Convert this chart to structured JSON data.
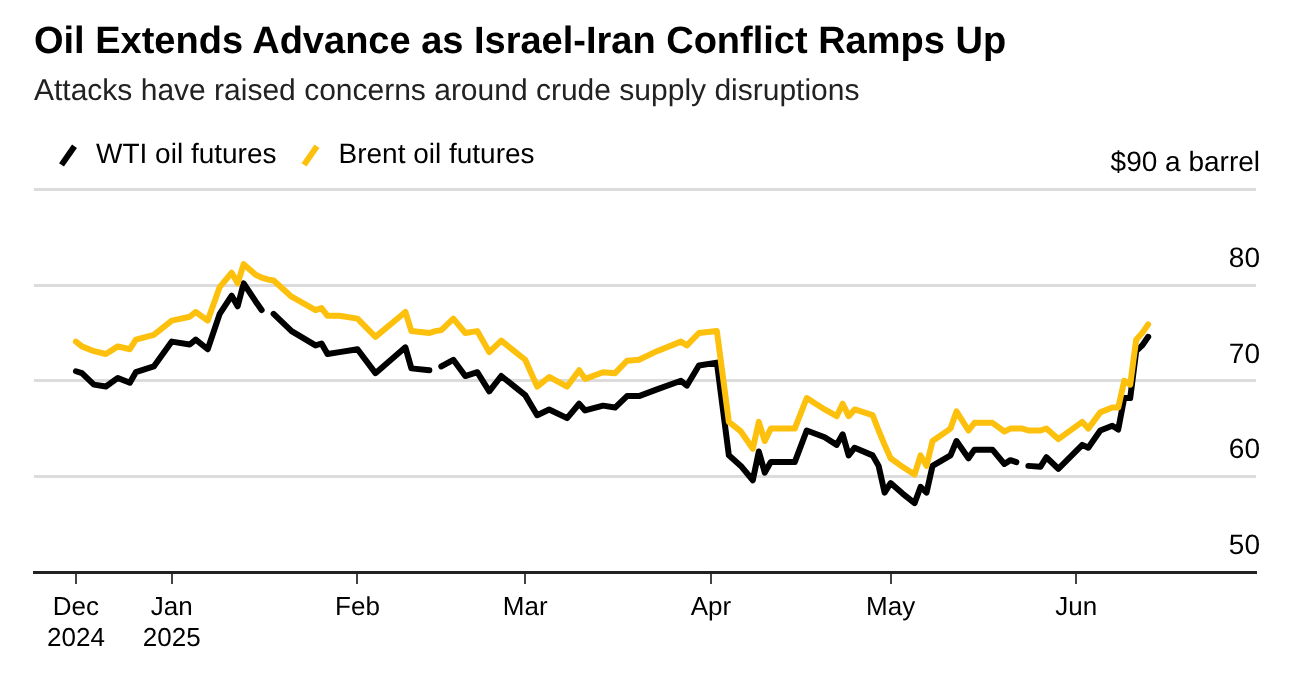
{
  "chart_data": {
    "type": "line",
    "title": "Oil Extends Advance as Israel-Iran Conflict Ramps Up",
    "subtitle": "Attacks have raised concerns around crude supply disruptions",
    "x": [
      "2024-12-16",
      "2024-12-17",
      "2024-12-19",
      "2024-12-21",
      "2024-12-23",
      "2024-12-25",
      "2024-12-26",
      "2024-12-29",
      "2025-01-01",
      "2025-01-04",
      "2025-01-05",
      "2025-01-07",
      "2025-01-09",
      "2025-01-11",
      "2025-01-12",
      "2025-01-13",
      "2025-01-15",
      "2025-01-16",
      "2025-01-17",
      "2025-01-18",
      "2025-01-21",
      "2025-01-25",
      "2025-01-26",
      "2025-01-27",
      "2025-01-29",
      "2025-02-01",
      "2025-02-04",
      "2025-02-09",
      "2025-02-10",
      "2025-02-13",
      "2025-02-14",
      "2025-02-15",
      "2025-02-17",
      "2025-02-19",
      "2025-02-21",
      "2025-02-23",
      "2025-02-25",
      "2025-03-01",
      "2025-03-03",
      "2025-03-05",
      "2025-03-08",
      "2025-03-10",
      "2025-03-11",
      "2025-03-14",
      "2025-03-16",
      "2025-03-18",
      "2025-03-20",
      "2025-03-23",
      "2025-03-27",
      "2025-03-28",
      "2025-03-30",
      "2025-04-02",
      "2025-04-04",
      "2025-04-06",
      "2025-04-08",
      "2025-04-09",
      "2025-04-10",
      "2025-04-11",
      "2025-04-15",
      "2025-04-17",
      "2025-04-20",
      "2025-04-22",
      "2025-04-23",
      "2025-04-24",
      "2025-04-25",
      "2025-04-28",
      "2025-04-29",
      "2025-04-30",
      "2025-05-01",
      "2025-05-03",
      "2025-05-05",
      "2025-05-06",
      "2025-05-07",
      "2025-05-08",
      "2025-05-11",
      "2025-05-12",
      "2025-05-14",
      "2025-05-15",
      "2025-05-18",
      "2025-05-20",
      "2025-05-21",
      "2025-05-22",
      "2025-05-23",
      "2025-05-24",
      "2025-05-26",
      "2025-05-27",
      "2025-05-29",
      "2025-06-02",
      "2025-06-03",
      "2025-06-05",
      "2025-06-07",
      "2025-06-08",
      "2025-06-09",
      "2025-06-10",
      "2025-06-11",
      "2025-06-12",
      "2025-06-13"
    ],
    "series": [
      {
        "name": "WTI oil futures",
        "color": "#000000",
        "values": [
          71.0,
          70.8,
          69.6,
          69.4,
          70.3,
          69.8,
          70.9,
          71.5,
          74.1,
          73.8,
          74.3,
          73.3,
          77.0,
          78.9,
          77.8,
          80.2,
          78.3,
          77.4,
          null,
          77.0,
          75.2,
          73.7,
          73.9,
          72.8,
          73.0,
          73.3,
          70.8,
          73.5,
          71.3,
          71.1,
          null,
          71.5,
          72.2,
          70.5,
          70.9,
          68.9,
          70.5,
          68.5,
          66.4,
          67.0,
          66.1,
          67.6,
          66.9,
          67.4,
          67.2,
          68.4,
          68.4,
          69.1,
          70.0,
          69.5,
          71.6,
          71.9,
          62.2,
          61.1,
          59.6,
          62.6,
          60.4,
          61.5,
          61.5,
          64.8,
          64.1,
          63.3,
          64.4,
          62.2,
          63.0,
          62.2,
          61.1,
          58.3,
          59.3,
          58.2,
          57.2,
          58.9,
          58.3,
          61.1,
          62.2,
          63.7,
          61.9,
          62.8,
          62.8,
          61.3,
          61.7,
          61.5,
          null,
          61.1,
          61.0,
          62.0,
          60.8,
          63.3,
          63.0,
          64.8,
          65.3,
          64.9,
          68.2,
          68.2,
          73.1,
          73.7,
          74.6
        ]
      },
      {
        "name": "Brent oil futures",
        "color": "#fdc00d",
        "values": [
          74.1,
          73.6,
          73.1,
          72.8,
          73.6,
          73.3,
          74.3,
          74.8,
          76.3,
          76.7,
          77.2,
          76.3,
          79.8,
          81.3,
          80.2,
          82.2,
          81.1,
          80.8,
          80.6,
          80.5,
          78.8,
          77.4,
          77.6,
          76.8,
          76.8,
          76.5,
          74.6,
          77.2,
          75.2,
          75.0,
          75.2,
          75.3,
          76.5,
          75.0,
          75.2,
          73.0,
          74.2,
          72.2,
          69.4,
          70.4,
          69.4,
          71.1,
          70.2,
          70.9,
          70.8,
          72.1,
          72.2,
          73.1,
          74.1,
          73.7,
          75.0,
          75.2,
          65.7,
          64.7,
          62.9,
          65.7,
          63.7,
          65.0,
          65.0,
          68.2,
          67.0,
          66.3,
          67.6,
          66.3,
          67.0,
          66.4,
          64.8,
          63.3,
          61.9,
          61.0,
          60.2,
          62.2,
          61.1,
          63.7,
          65.0,
          66.8,
          64.8,
          65.6,
          65.6,
          64.7,
          65.0,
          65.0,
          65.0,
          64.8,
          64.8,
          65.0,
          63.9,
          65.7,
          65.0,
          66.7,
          67.2,
          67.2,
          70.0,
          69.6,
          74.3,
          75.0,
          75.9
        ]
      }
    ],
    "xlim": [
      "2024-12-09",
      "2025-07-01"
    ],
    "xticks": [
      {
        "value": "2024-12-16",
        "label": "Dec 2024"
      },
      {
        "value": "2025-01-01",
        "label": "Jan 2025"
      },
      {
        "value": "2025-02-01",
        "label": "Feb"
      },
      {
        "value": "2025-03-01",
        "label": "Mar"
      },
      {
        "value": "2025-04-01",
        "label": "Apr"
      },
      {
        "value": "2025-05-01",
        "label": "May"
      },
      {
        "value": "2025-06-01",
        "label": "Jun"
      }
    ],
    "ylim": [
      50,
      90
    ],
    "yticks": [
      50,
      60,
      70,
      80,
      {
        "value": 90,
        "label": "$90 a barrel"
      }
    ],
    "grid": "y",
    "legend": "top left",
    "marker": "none",
    "line_style": "solid"
  }
}
